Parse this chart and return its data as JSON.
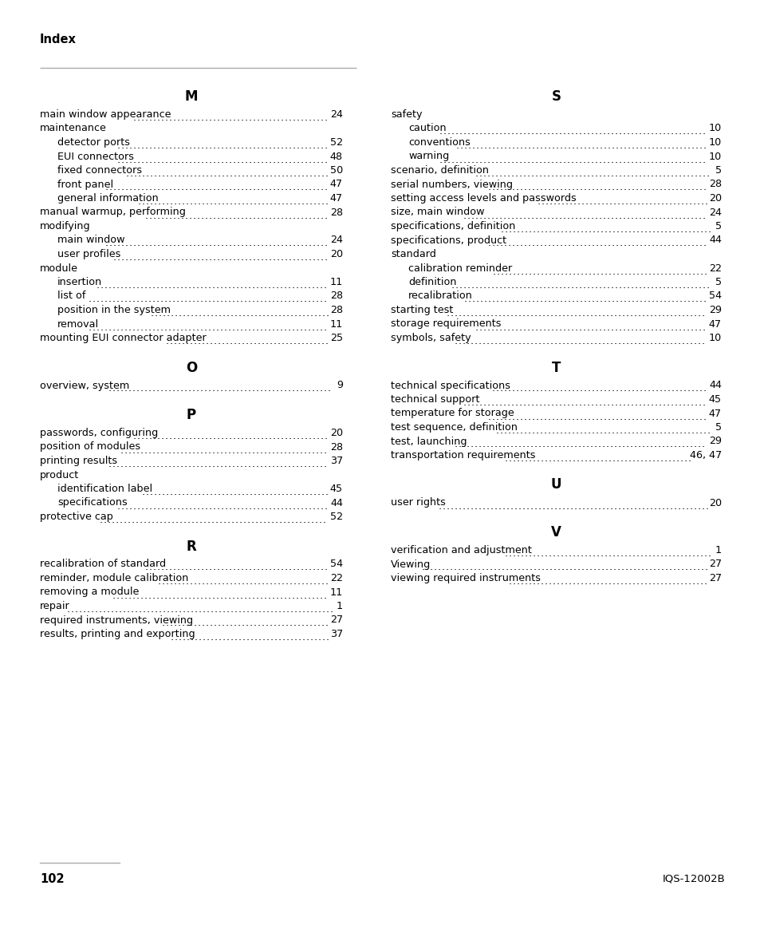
{
  "page_header": "Index",
  "page_number": "102",
  "page_footer_right": "IQS-12002B",
  "bg_color": "#ffffff",
  "text_color": "#000000",
  "left_sections": [
    {
      "letter": "M",
      "entries": [
        {
          "text": "main window appearance",
          "page": "24",
          "indent": 0
        },
        {
          "text": "maintenance",
          "page": "",
          "indent": 0
        },
        {
          "text": "detector ports",
          "page": "52",
          "indent": 1
        },
        {
          "text": "EUI connectors",
          "page": "48",
          "indent": 1
        },
        {
          "text": "fixed connectors",
          "page": "50",
          "indent": 1
        },
        {
          "text": "front panel",
          "page": "47",
          "indent": 1
        },
        {
          "text": "general information",
          "page": "47",
          "indent": 1
        },
        {
          "text": "manual warmup, performing",
          "page": "28",
          "indent": 0
        },
        {
          "text": "modifying",
          "page": "",
          "indent": 0
        },
        {
          "text": "main window",
          "page": "24",
          "indent": 1
        },
        {
          "text": "user profiles",
          "page": "20",
          "indent": 1
        },
        {
          "text": "module",
          "page": "",
          "indent": 0
        },
        {
          "text": "insertion",
          "page": "11",
          "indent": 1
        },
        {
          "text": "list of",
          "page": "28",
          "indent": 1
        },
        {
          "text": "position in the system",
          "page": "28",
          "indent": 1
        },
        {
          "text": "removal",
          "page": "11",
          "indent": 1
        },
        {
          "text": "mounting EUI connector adapter",
          "page": "25",
          "indent": 0
        }
      ]
    },
    {
      "letter": "O",
      "entries": [
        {
          "text": "overview, system",
          "page": "9",
          "indent": 0
        }
      ]
    },
    {
      "letter": "P",
      "entries": [
        {
          "text": "passwords, configuring",
          "page": "20",
          "indent": 0
        },
        {
          "text": "position of modules",
          "page": "28",
          "indent": 0
        },
        {
          "text": "printing results",
          "page": "37",
          "indent": 0
        },
        {
          "text": "product",
          "page": "",
          "indent": 0
        },
        {
          "text": "identification label",
          "page": "45",
          "indent": 1
        },
        {
          "text": "specifications",
          "page": "44",
          "indent": 1
        },
        {
          "text": "protective cap",
          "page": "52",
          "indent": 0
        }
      ]
    },
    {
      "letter": "R",
      "entries": [
        {
          "text": "recalibration of standard",
          "page": "54",
          "indent": 0
        },
        {
          "text": "reminder, module calibration",
          "page": "22",
          "indent": 0
        },
        {
          "text": "removing a module",
          "page": "11",
          "indent": 0
        },
        {
          "text": "repair",
          "page": "1",
          "indent": 0
        },
        {
          "text": "required instruments, viewing",
          "page": "27",
          "indent": 0
        },
        {
          "text": "results, printing and exporting",
          "page": "37",
          "indent": 0
        }
      ]
    }
  ],
  "right_sections": [
    {
      "letter": "S",
      "entries": [
        {
          "text": "safety",
          "page": "",
          "indent": 0
        },
        {
          "text": "caution",
          "page": "10",
          "indent": 1
        },
        {
          "text": "conventions",
          "page": "10",
          "indent": 1
        },
        {
          "text": "warning",
          "page": "10",
          "indent": 1
        },
        {
          "text": "scenario, definition",
          "page": "5",
          "indent": 0
        },
        {
          "text": "serial numbers, viewing",
          "page": "28",
          "indent": 0
        },
        {
          "text": "setting access levels and passwords",
          "page": "20",
          "indent": 0
        },
        {
          "text": "size, main window",
          "page": "24",
          "indent": 0
        },
        {
          "text": "specifications, definition",
          "page": "5",
          "indent": 0
        },
        {
          "text": "specifications, product",
          "page": "44",
          "indent": 0
        },
        {
          "text": "standard",
          "page": "",
          "indent": 0
        },
        {
          "text": "calibration reminder",
          "page": "22",
          "indent": 1
        },
        {
          "text": "definition",
          "page": "5",
          "indent": 1
        },
        {
          "text": "recalibration",
          "page": "54",
          "indent": 1
        },
        {
          "text": "starting test",
          "page": "29",
          "indent": 0
        },
        {
          "text": "storage requirements",
          "page": "47",
          "indent": 0
        },
        {
          "text": "symbols, safety",
          "page": "10",
          "indent": 0
        }
      ]
    },
    {
      "letter": "T",
      "entries": [
        {
          "text": "technical specifications",
          "page": "44",
          "indent": 0
        },
        {
          "text": "technical support",
          "page": "45",
          "indent": 0
        },
        {
          "text": "temperature for storage",
          "page": "47",
          "indent": 0
        },
        {
          "text": "test sequence, definition",
          "page": "5",
          "indent": 0
        },
        {
          "text": "test, launching",
          "page": "29",
          "indent": 0
        },
        {
          "text": "transportation requirements",
          "page": "46, 47",
          "indent": 0
        }
      ]
    },
    {
      "letter": "U",
      "entries": [
        {
          "text": "user rights",
          "page": "20",
          "indent": 0
        }
      ]
    },
    {
      "letter": "V",
      "entries": [
        {
          "text": "verification and adjustment",
          "page": "1",
          "indent": 0
        },
        {
          "text": "Viewing",
          "page": "27",
          "indent": 0
        },
        {
          "text": "viewing required instruments",
          "page": "27",
          "indent": 0
        }
      ]
    }
  ]
}
